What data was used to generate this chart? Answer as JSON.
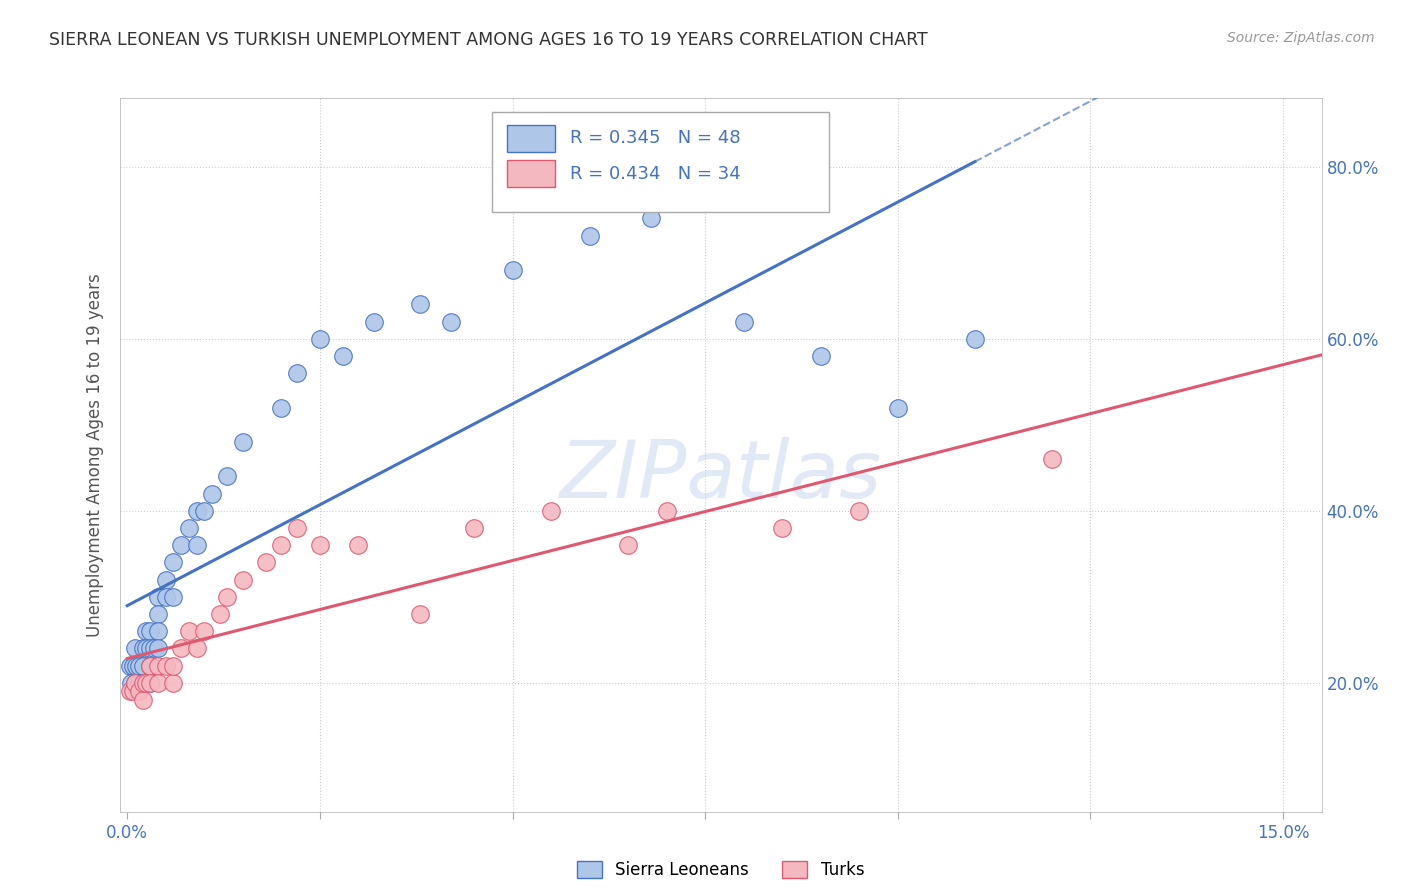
{
  "title": "SIERRA LEONEAN VS TURKISH UNEMPLOYMENT AMONG AGES 16 TO 19 YEARS CORRELATION CHART",
  "source": "Source: ZipAtlas.com",
  "ylabel_ticks": [
    0.2,
    0.4,
    0.6,
    0.8
  ],
  "ylabel_tick_labels": [
    "20.0%",
    "40.0%",
    "60.0%",
    "80.0%"
  ],
  "xlim": [
    -0.001,
    0.155
  ],
  "ylim": [
    0.05,
    0.88
  ],
  "legend_label1": "Sierra Leoneans",
  "legend_label2": "Turks",
  "color_sl": "#aec6e8",
  "color_turk": "#f4b8c0",
  "color_line_sl": "#4472c4",
  "color_line_turk": "#e05870",
  "color_text_blue": "#4472c4",
  "watermark": "ZIPatlas",
  "sl_x": [
    0.0003,
    0.0005,
    0.0008,
    0.001,
    0.001,
    0.0012,
    0.0015,
    0.0015,
    0.002,
    0.002,
    0.002,
    0.0025,
    0.0025,
    0.003,
    0.003,
    0.003,
    0.003,
    0.0035,
    0.004,
    0.004,
    0.004,
    0.004,
    0.005,
    0.005,
    0.006,
    0.006,
    0.007,
    0.008,
    0.009,
    0.009,
    0.01,
    0.011,
    0.013,
    0.015,
    0.02,
    0.022,
    0.025,
    0.028,
    0.032,
    0.038,
    0.042,
    0.05,
    0.06,
    0.068,
    0.08,
    0.09,
    0.1,
    0.11
  ],
  "sl_y": [
    0.22,
    0.2,
    0.22,
    0.24,
    0.2,
    0.22,
    0.22,
    0.2,
    0.24,
    0.22,
    0.2,
    0.26,
    0.24,
    0.26,
    0.24,
    0.22,
    0.2,
    0.24,
    0.3,
    0.28,
    0.26,
    0.24,
    0.32,
    0.3,
    0.34,
    0.3,
    0.36,
    0.38,
    0.4,
    0.36,
    0.4,
    0.42,
    0.44,
    0.48,
    0.52,
    0.56,
    0.6,
    0.58,
    0.62,
    0.64,
    0.62,
    0.68,
    0.72,
    0.74,
    0.62,
    0.58,
    0.52,
    0.6
  ],
  "turk_x": [
    0.0003,
    0.0008,
    0.001,
    0.0015,
    0.002,
    0.002,
    0.0025,
    0.003,
    0.003,
    0.004,
    0.004,
    0.005,
    0.006,
    0.006,
    0.007,
    0.008,
    0.009,
    0.01,
    0.012,
    0.013,
    0.015,
    0.018,
    0.02,
    0.022,
    0.025,
    0.03,
    0.038,
    0.045,
    0.055,
    0.065,
    0.07,
    0.085,
    0.095,
    0.12
  ],
  "turk_y": [
    0.19,
    0.19,
    0.2,
    0.19,
    0.18,
    0.2,
    0.2,
    0.22,
    0.2,
    0.22,
    0.2,
    0.22,
    0.2,
    0.22,
    0.24,
    0.26,
    0.24,
    0.26,
    0.28,
    0.3,
    0.32,
    0.34,
    0.36,
    0.38,
    0.36,
    0.36,
    0.28,
    0.38,
    0.4,
    0.36,
    0.4,
    0.38,
    0.4,
    0.46
  ]
}
